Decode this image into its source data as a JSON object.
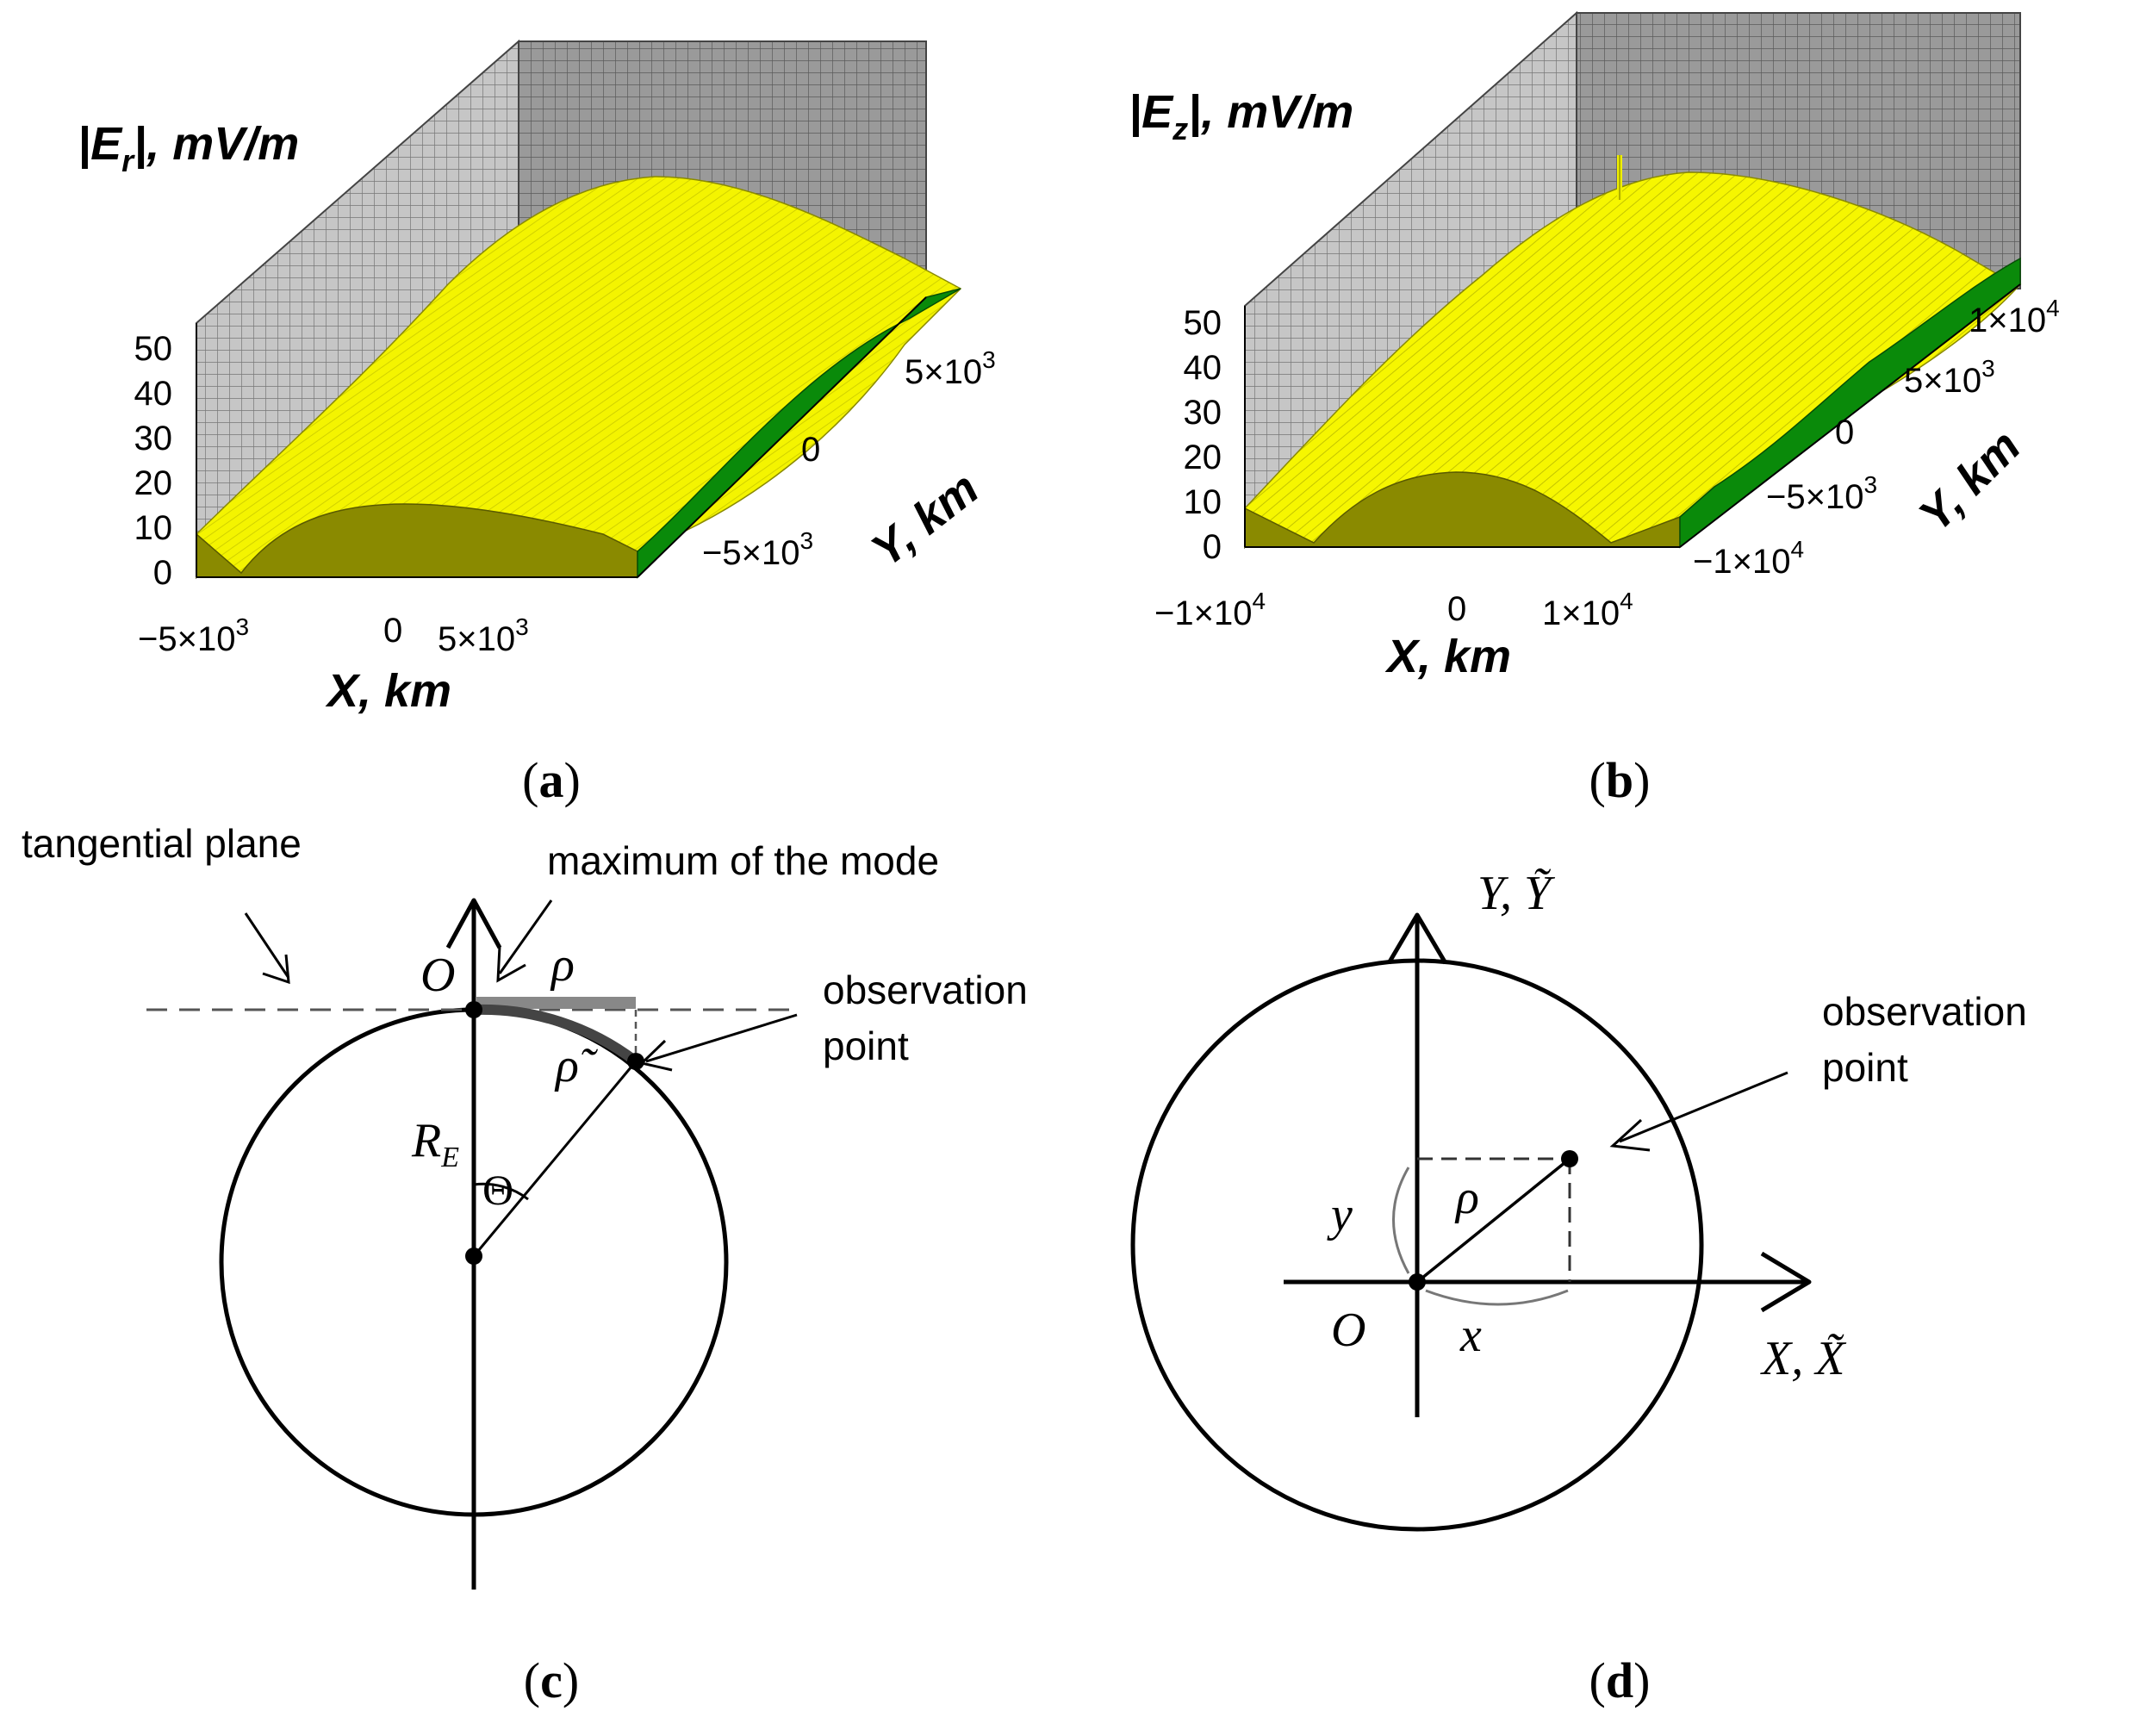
{
  "figure": {
    "panels": [
      {
        "id": "a",
        "label": "(a)",
        "title": "|Er|, mV/m",
        "title_main": "|E",
        "title_sub": "r",
        "title_tail": "|, mV/m",
        "xlabel": "X, km",
        "ylabel": "Y, km",
        "z_ticks": [
          "0",
          "10",
          "20",
          "30",
          "40",
          "50"
        ],
        "x_ticks": [
          {
            "base": "−5×10",
            "exp": "3"
          },
          {
            "base": "0",
            "exp": ""
          },
          {
            "base": "5×10",
            "exp": "3"
          }
        ],
        "y_ticks": [
          {
            "base": "−5×10",
            "exp": "3"
          },
          {
            "base": "0",
            "exp": ""
          },
          {
            "base": "5×10",
            "exp": "3"
          }
        ]
      },
      {
        "id": "b",
        "label": "(b)",
        "title_main": "|E",
        "title_sub": "z",
        "title_tail": "|, mV/m",
        "xlabel": "X, km",
        "ylabel": "Y, km",
        "z_ticks": [
          "0",
          "10",
          "20",
          "30",
          "40",
          "50"
        ],
        "x_ticks": [
          {
            "base": "−1×10",
            "exp": "4"
          },
          {
            "base": "0",
            "exp": ""
          },
          {
            "base": "1×10",
            "exp": "4"
          }
        ],
        "y_ticks": [
          {
            "base": "−1×10",
            "exp": "4"
          },
          {
            "base": "−5×10",
            "exp": "3"
          },
          {
            "base": "0",
            "exp": ""
          },
          {
            "base": "5×10",
            "exp": "3"
          },
          {
            "base": "1×10",
            "exp": "4"
          }
        ]
      },
      {
        "id": "c",
        "label": "(c)",
        "annotations": {
          "tangential_plane": "tangential plane",
          "maximum_mode": "maximum of the mode",
          "observation_point_1": "observation",
          "observation_point_2": "point"
        },
        "symbols": {
          "origin": "O",
          "rho": "ρ",
          "rho_tilde": "ρ̃",
          "radius": "R",
          "radius_sub": "E",
          "theta": "Θ"
        }
      },
      {
        "id": "d",
        "label": "(d)",
        "annotations": {
          "observation_point_1": "observation",
          "observation_point_2": "point"
        },
        "symbols": {
          "y_axis": "Y, Ỹ",
          "x_axis": "X, X̃",
          "origin": "O",
          "rho": "ρ",
          "x": "x",
          "y": "y"
        }
      }
    ]
  },
  "colors": {
    "surface": "#f2f200",
    "surface_dark": "#d8d800",
    "floor": "#8a8a00",
    "side": "#0a8a0a",
    "wall": "#bdbdbd",
    "wall_dark": "#8c8c8c",
    "gridline": "#6b6b6b"
  }
}
